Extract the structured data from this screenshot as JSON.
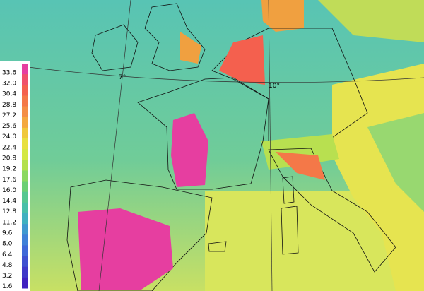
{
  "legend": {
    "labels": [
      "33.6",
      "32.0",
      "30.4",
      "28.8",
      "27.2",
      "25.6",
      "24.0",
      "22.4",
      "20.8",
      "19.2",
      "17.6",
      "16.0",
      "14.4",
      "12.8",
      "11.2",
      "9.6",
      "8.0",
      "6.4",
      "4.8",
      "3.2",
      "1.6"
    ],
    "colors": [
      "#e63ea0",
      "#f0506a",
      "#f4604e",
      "#f47848",
      "#f48e46",
      "#f4a840",
      "#f0c83c",
      "#e8e040",
      "#d4e844",
      "#b4e04c",
      "#8cd860",
      "#6ccf74",
      "#56c790",
      "#48bfa8",
      "#40b0c0",
      "#4098d0",
      "#4080d8",
      "#4068d8",
      "#4050d0",
      "#4038c8",
      "#4020c0"
    ]
  },
  "graticule_labels": [
    "7°",
    "10°"
  ]
}
